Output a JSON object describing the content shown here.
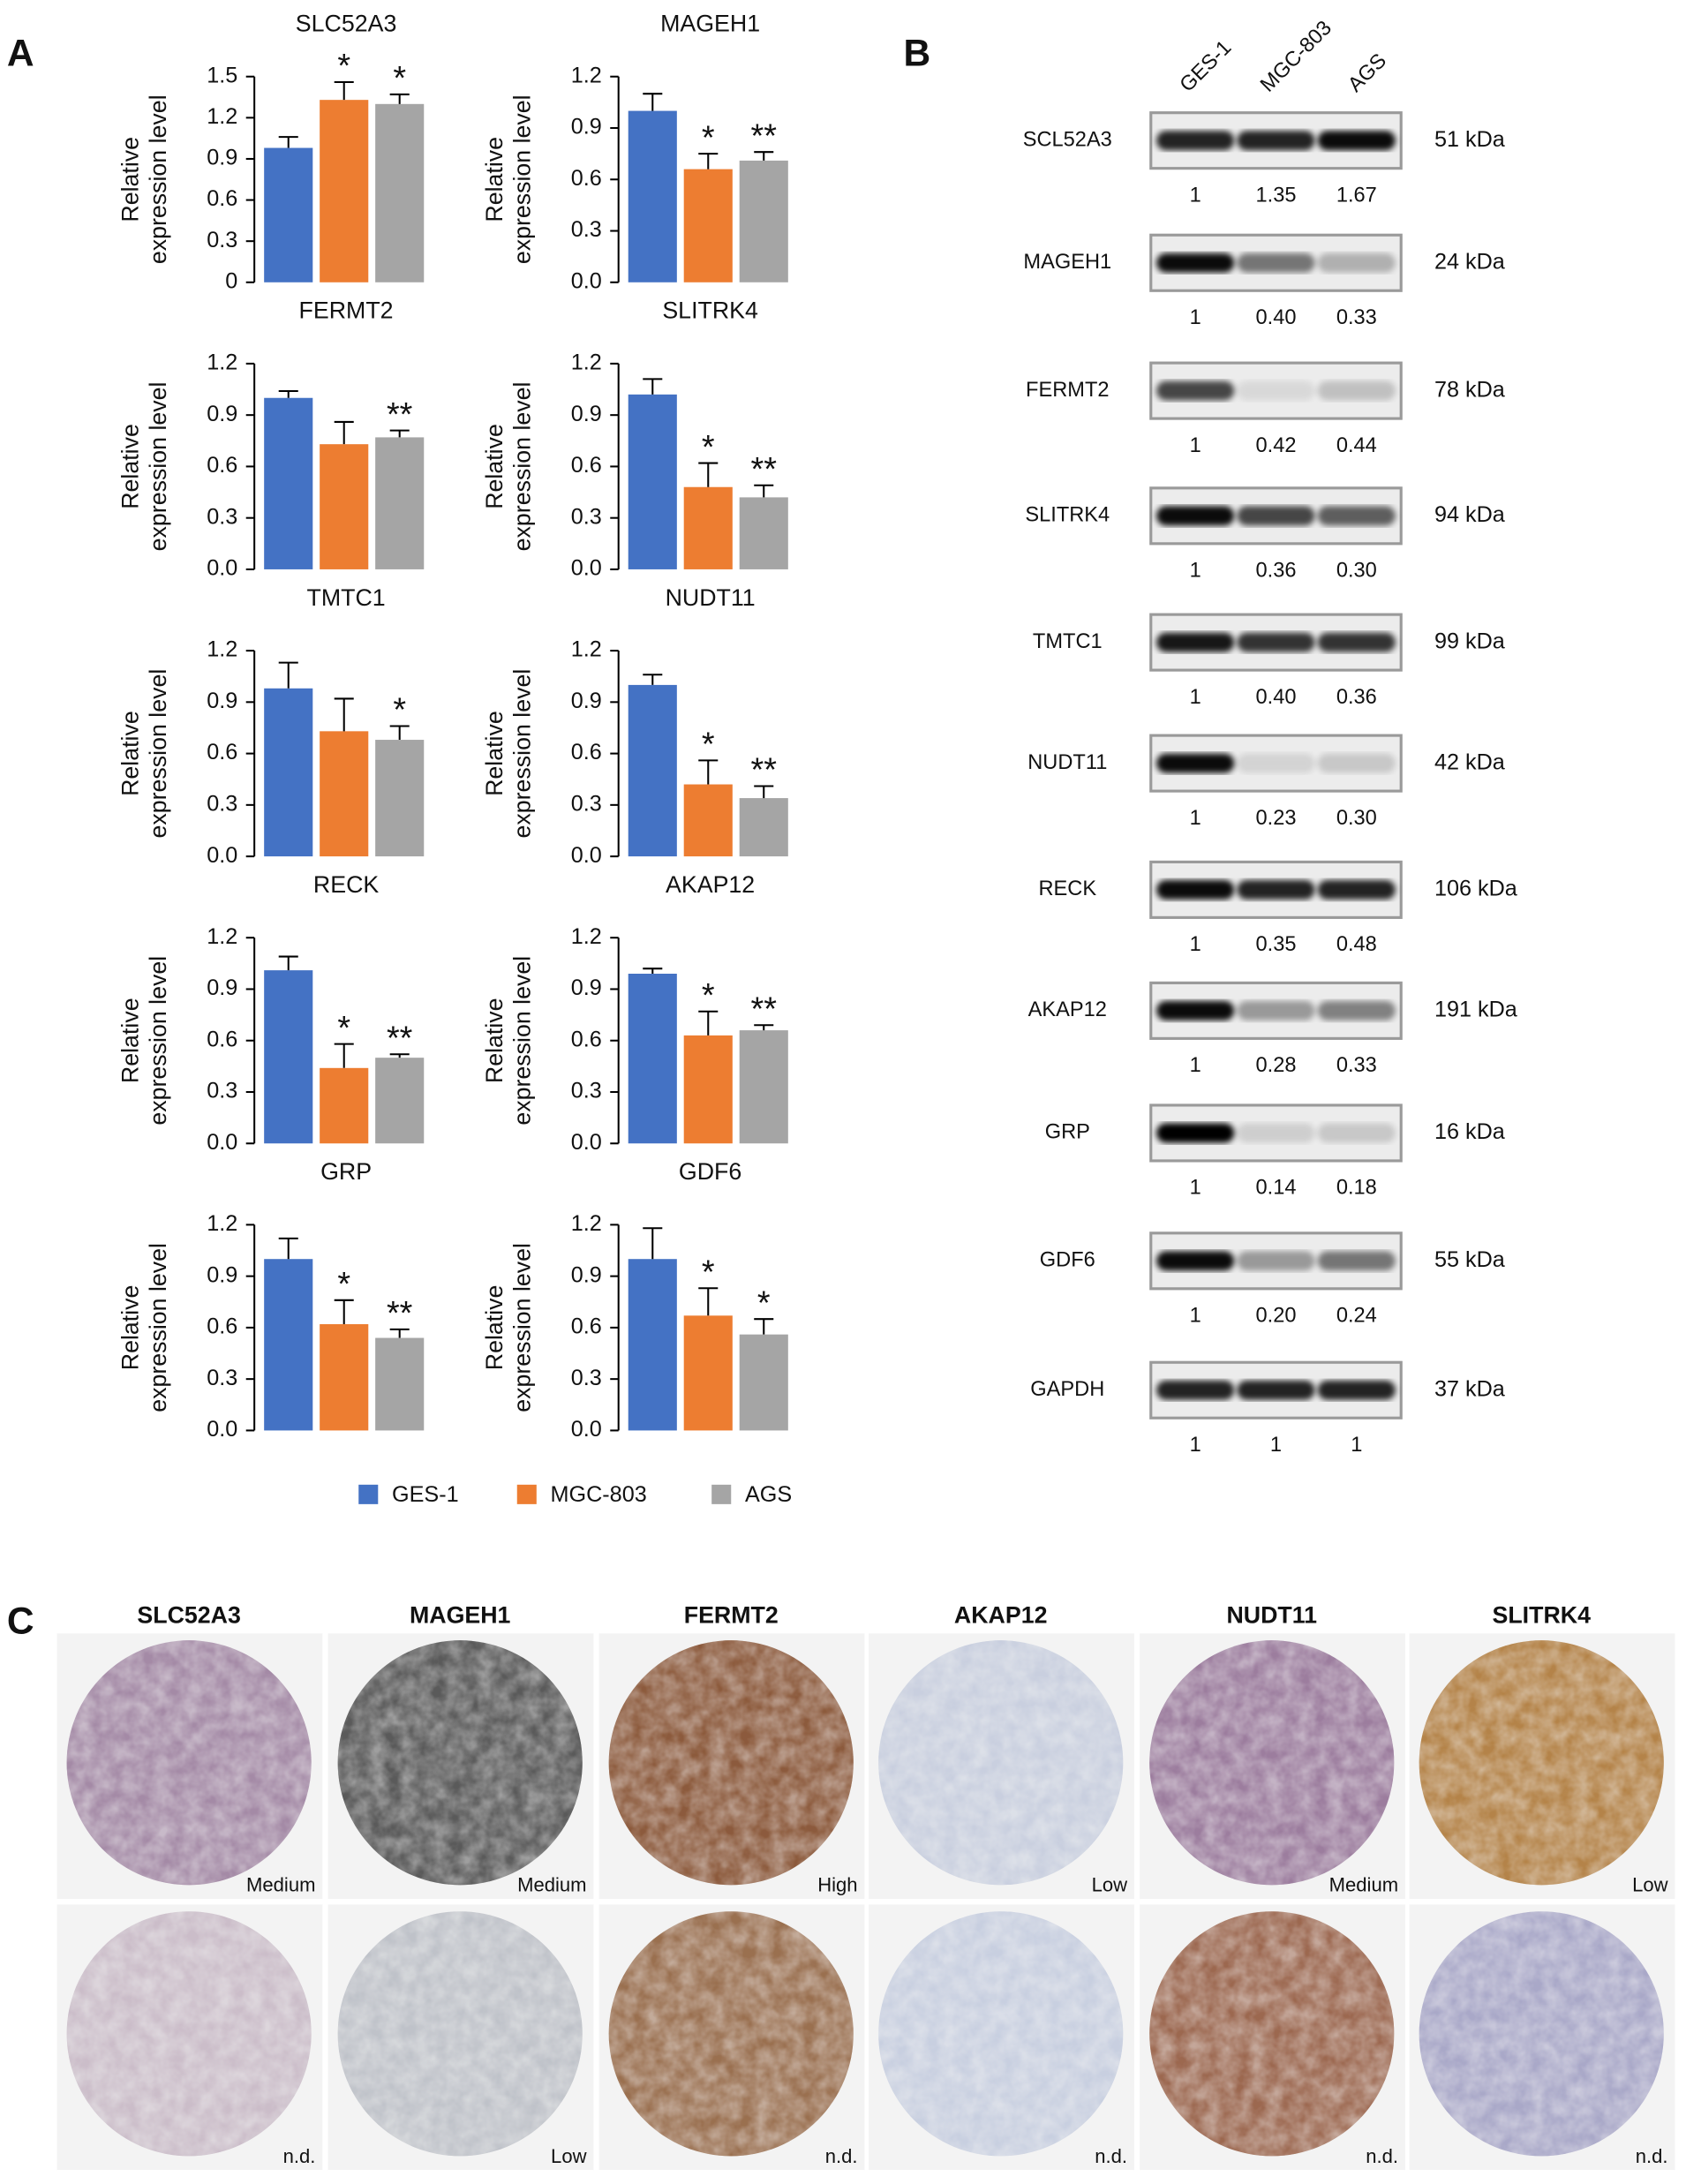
{
  "panel_labels": [
    "A",
    "B",
    "C"
  ],
  "groups": [
    {
      "name": "GES-1",
      "color": "#4472c4"
    },
    {
      "name": "MGC-803",
      "color": "#ed7d31"
    },
    {
      "name": "AGS",
      "color": "#a5a5a5"
    }
  ],
  "chart_data": [
    {
      "type": "bar",
      "title": "SLC52A3",
      "ylabel": [
        "Relative",
        "expression level"
      ],
      "values": [
        0.98,
        1.33,
        1.3
      ],
      "errors": [
        0.08,
        0.13,
        0.07
      ],
      "annotations": [
        null,
        "*",
        "*"
      ],
      "ylim": [
        0,
        1.5
      ],
      "yticks": [
        0,
        0.3,
        0.6,
        0.9,
        1.2,
        1.5
      ]
    },
    {
      "type": "bar",
      "title": "MAGEH1",
      "ylabel": [
        "Relative",
        "expression level"
      ],
      "values": [
        1.0,
        0.66,
        0.71
      ],
      "errors": [
        0.1,
        0.09,
        0.05
      ],
      "annotations": [
        null,
        "*",
        "**"
      ],
      "ylim": [
        0,
        1.2
      ],
      "yticks": [
        {
          "value": 0,
          "label": "0.0"
        },
        0.3,
        0.6,
        0.9,
        1.2
      ]
    },
    {
      "type": "bar",
      "title": "FERMT2",
      "ylabel": [
        "Relative",
        "expression level"
      ],
      "values": [
        1.0,
        0.73,
        0.77
      ],
      "errors": [
        0.04,
        0.13,
        0.04
      ],
      "annotations": [
        null,
        null,
        "**"
      ],
      "ylim": [
        0,
        1.2
      ],
      "yticks": [
        {
          "value": 0,
          "label": "0.0"
        },
        0.3,
        0.6,
        0.9,
        1.2
      ]
    },
    {
      "type": "bar",
      "title": "SLITRK4",
      "ylabel": [
        "Relative",
        "expression level"
      ],
      "values": [
        1.02,
        0.48,
        0.42
      ],
      "errors": [
        0.09,
        0.14,
        0.07
      ],
      "annotations": [
        null,
        "*",
        "**"
      ],
      "ylim": [
        0,
        1.2
      ],
      "yticks": [
        {
          "value": 0,
          "label": "0.0"
        },
        0.3,
        0.6,
        0.9,
        1.2
      ]
    },
    {
      "type": "bar",
      "title": "TMTC1",
      "ylabel": [
        "Relative",
        "expression level"
      ],
      "values": [
        0.98,
        0.73,
        0.68
      ],
      "errors": [
        0.15,
        0.19,
        0.08
      ],
      "annotations": [
        null,
        null,
        "*"
      ],
      "ylim": [
        0,
        1.2
      ],
      "yticks": [
        {
          "value": 0,
          "label": "0.0"
        },
        0.3,
        0.6,
        0.9,
        1.2
      ]
    },
    {
      "type": "bar",
      "title": "NUDT11",
      "ylabel": [
        "Relative",
        "expression level"
      ],
      "values": [
        1.0,
        0.42,
        0.34
      ],
      "errors": [
        0.06,
        0.14,
        0.07
      ],
      "annotations": [
        null,
        "*",
        "**"
      ],
      "ylim": [
        0,
        1.2
      ],
      "yticks": [
        {
          "value": 0,
          "label": "0.0"
        },
        0.3,
        0.6,
        0.9,
        1.2
      ]
    },
    {
      "type": "bar",
      "title": "RECK",
      "ylabel": [
        "Relative",
        "expression level"
      ],
      "values": [
        1.01,
        0.44,
        0.5
      ],
      "errors": [
        0.08,
        0.14,
        0.02
      ],
      "annotations": [
        null,
        "*",
        "**"
      ],
      "ylim": [
        0,
        1.2
      ],
      "yticks": [
        {
          "value": 0,
          "label": "0.0"
        },
        0.3,
        0.6,
        0.9,
        1.2
      ]
    },
    {
      "type": "bar",
      "title": "AKAP12",
      "ylabel": [
        "Relative",
        "expression level"
      ],
      "values": [
        0.99,
        0.63,
        0.66
      ],
      "errors": [
        0.03,
        0.14,
        0.03
      ],
      "annotations": [
        null,
        "*",
        "**"
      ],
      "ylim": [
        0,
        1.2
      ],
      "yticks": [
        {
          "value": 0,
          "label": "0.0"
        },
        0.3,
        0.6,
        0.9,
        1.2
      ]
    },
    {
      "type": "bar",
      "title": "GRP",
      "ylabel": [
        "Relative",
        "expression level"
      ],
      "values": [
        1.0,
        0.62,
        0.54
      ],
      "errors": [
        0.12,
        0.14,
        0.05
      ],
      "annotations": [
        null,
        "*",
        "**"
      ],
      "ylim": [
        0,
        1.2
      ],
      "yticks": [
        {
          "value": 0,
          "label": "0.0"
        },
        0.3,
        0.6,
        0.9,
        1.2
      ]
    },
    {
      "type": "bar",
      "title": "GDF6",
      "ylabel": [
        "Relative",
        "expression level"
      ],
      "values": [
        1.0,
        0.67,
        0.56
      ],
      "errors": [
        0.18,
        0.16,
        0.09
      ],
      "annotations": [
        null,
        "*",
        "*"
      ],
      "ylim": [
        0,
        1.2
      ],
      "yticks": [
        {
          "value": 0,
          "label": "0.0"
        },
        0.3,
        0.6,
        0.9,
        1.2
      ]
    }
  ],
  "blot": {
    "lanes": [
      "GES-1",
      "MGC-803",
      "AGS"
    ],
    "rows": [
      {
        "protein": "SCL52A3",
        "kda": "51 kDa",
        "quant": [
          "1",
          "1.35",
          "1.67"
        ]
      },
      {
        "protein": "MAGEH1",
        "kda": "24 kDa",
        "quant": [
          "1",
          "0.40",
          "0.33"
        ]
      },
      {
        "protein": "FERMT2",
        "kda": "78 kDa",
        "quant": [
          "1",
          "0.42",
          "0.44"
        ]
      },
      {
        "protein": "SLITRK4",
        "kda": "94 kDa",
        "quant": [
          "1",
          "0.36",
          "0.30"
        ]
      },
      {
        "protein": "TMTC1",
        "kda": "99 kDa",
        "quant": [
          "1",
          "0.40",
          "0.36"
        ]
      },
      {
        "protein": "NUDT11",
        "kda": "42 kDa",
        "quant": [
          "1",
          "0.23",
          "0.30"
        ]
      },
      {
        "protein": "RECK",
        "kda": "106 kDa",
        "quant": [
          "1",
          "0.35",
          "0.48"
        ]
      },
      {
        "protein": "AKAP12",
        "kda": "191 kDa",
        "quant": [
          "1",
          "0.28",
          "0.33"
        ]
      },
      {
        "protein": "GRP",
        "kda": "16 kDa",
        "quant": [
          "1",
          "0.14",
          "0.18"
        ]
      },
      {
        "protein": "GDF6",
        "kda": "55 kDa",
        "quant": [
          "1",
          "0.20",
          "0.24"
        ]
      },
      {
        "protein": "GAPDH",
        "kda": "37 kDa",
        "quant": [
          "1",
          "1",
          "1"
        ]
      }
    ]
  },
  "ihc": {
    "columns": [
      {
        "gene": "SLC52A3",
        "levels": [
          "Medium",
          "n.d."
        ]
      },
      {
        "gene": "MAGEH1",
        "levels": [
          "Medium",
          "Low"
        ]
      },
      {
        "gene": "FERMT2",
        "levels": [
          "High",
          "n.d."
        ]
      },
      {
        "gene": "AKAP12",
        "levels": [
          "Low",
          "n.d."
        ]
      },
      {
        "gene": "NUDT11",
        "levels": [
          "Medium",
          "n.d."
        ]
      },
      {
        "gene": "SLITRK4",
        "levels": [
          "Low",
          "n.d."
        ]
      }
    ]
  }
}
